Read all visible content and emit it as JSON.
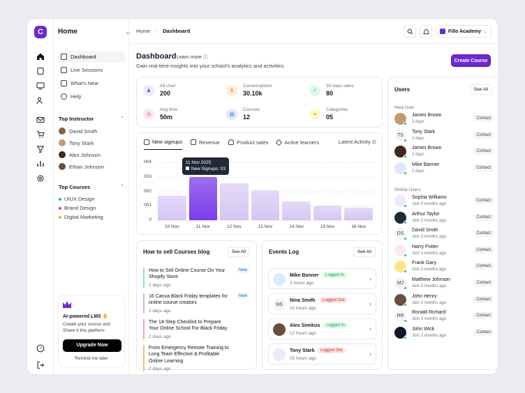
{
  "sidebar": {
    "title": "Home",
    "nav": [
      {
        "label": "Dashboard"
      },
      {
        "label": "Live Sessions"
      },
      {
        "label": "What's New"
      },
      {
        "label": "Help"
      }
    ],
    "instructors_title": "Top Instructor",
    "instructors": [
      {
        "name": "David Smith"
      },
      {
        "name": "Tony Stark"
      },
      {
        "name": "Alex Johnson"
      },
      {
        "name": "Ethan Johnson"
      }
    ],
    "courses_title": "Top Courses",
    "courses": [
      {
        "name": "UIUX Design",
        "color": "#22c55e"
      },
      {
        "name": "Brand Design",
        "color": "#ef4444"
      },
      {
        "name": "Digital Marketing",
        "color": "#eab308"
      }
    ],
    "promo": {
      "title": "AI-powered LMS ✋",
      "desc": "Create your course and Share it this platform",
      "button": "Upgrade Now",
      "later": "Remind me later"
    }
  },
  "topbar": {
    "crumb_home": "Home",
    "crumb_current": "Dashboard",
    "account": "Fillo Academy"
  },
  "main": {
    "title": "Dashboard",
    "learn": "Learn more ⓘ",
    "subtitle": "Gain real-time insights into your school's analytics and activities.",
    "cta": "Create Course"
  },
  "stats": [
    {
      "label": "All User",
      "value": "200",
      "color": "#ede9fe",
      "fg": "#7c3aed"
    },
    {
      "label": "Conversations",
      "value": "30.10k",
      "color": "#ffedd5",
      "fg": "#f97316"
    },
    {
      "label": "30 days sales",
      "value": "80",
      "color": "#dcfce7",
      "fg": "#16a34a"
    },
    {
      "label": "Avg time",
      "value": "50m",
      "color": "#fce7f3",
      "fg": "#db2777"
    },
    {
      "label": "Courses",
      "value": "12",
      "color": "#dbeafe",
      "fg": "#2563eb"
    },
    {
      "label": "Categories",
      "value": "05",
      "color": "#fef9c3",
      "fg": "#ca8a04"
    }
  ],
  "chart_tabs": [
    "New signups",
    "Revenue",
    "Product sales",
    "Active learners"
  ],
  "chart_latest": "Latest Activity ⊙",
  "chart_data": {
    "type": "bar",
    "categories": [
      "10 Nov",
      "11 Nov",
      "12 Nov",
      "13 Nov",
      "14 Nov",
      "15 Nov",
      "16 Nov"
    ],
    "values": [
      1.7,
      3.0,
      2.55,
      2.05,
      1.3,
      1.0,
      0.85
    ],
    "yticks": [
      "004",
      "003",
      "002",
      "001",
      "0"
    ],
    "ylim": [
      0,
      4
    ],
    "highlight_index": 1,
    "tooltip": {
      "date": "11 Nov 2025",
      "label": "New Signups: 03"
    }
  },
  "blog": {
    "title": "How to sell Courses blog",
    "see_all": "See All",
    "items": [
      {
        "title": "How to Sell Online Course On Your Shopify Store",
        "date": "2 days ago",
        "badge": "New",
        "color": "#86efac"
      },
      {
        "title": "16 Canva Black Friday templates for online course creators",
        "date": "2 days ago",
        "badge": "New",
        "color": "#c4b5fd"
      },
      {
        "title": "The 14-Step Checklist to Prepare Your Online School For Black Friday",
        "date": "2 days ago",
        "badge": "",
        "color": "#fca5a5"
      },
      {
        "title": "From Emergency Remote Training to Long Team Effective & Profitable Online Learning",
        "date": "2 days ago",
        "badge": "",
        "color": "#fdba74"
      }
    ]
  },
  "events": {
    "title": "Events Log",
    "see_all": "See All",
    "items": [
      {
        "name": "Mike Banner",
        "status": "Logged In",
        "time": "2 hours ago",
        "in": true
      },
      {
        "name": "Nina Smith",
        "status": "Logged Out",
        "time": "10 hours ago",
        "in": false,
        "initials": "NS"
      },
      {
        "name": "Alex Simitsis",
        "status": "Logged In",
        "time": "12 hours ago",
        "in": true
      },
      {
        "name": "Tony Stark",
        "status": "Logged Out",
        "time": "15 hours ago",
        "in": false
      }
    ]
  },
  "users": {
    "title": "Users",
    "see_all": "See All",
    "new_label": "New User",
    "online_label": "Online Users",
    "contact": "Contact",
    "new": [
      {
        "name": "James Brown",
        "time": "2 days",
        "initials": ""
      },
      {
        "name": "Tony Stark",
        "time": "2 days",
        "initials": "TS"
      },
      {
        "name": "James Brown",
        "time": "2 days",
        "initials": ""
      },
      {
        "name": "Mike Banner",
        "time": "2 days",
        "initials": ""
      }
    ],
    "online": [
      {
        "name": "Sophia Williams",
        "time": "Join 3 months ago",
        "initials": ""
      },
      {
        "name": "Arthur Taylor",
        "time": "Join 3 months ago",
        "initials": ""
      },
      {
        "name": "David Smith",
        "time": "Join 3 months ago",
        "initials": "DS"
      },
      {
        "name": "Harry Potter",
        "time": "Join 3 months ago",
        "initials": ""
      },
      {
        "name": "Frank Gary",
        "time": "Join 3 months ago",
        "initials": ""
      },
      {
        "name": "Matthew Johnson",
        "time": "Join 3 months ago",
        "initials": "MJ"
      },
      {
        "name": "John Henry",
        "time": "Join 3 months ago",
        "initials": ""
      },
      {
        "name": "Ronald Richard",
        "time": "Join 3 months ago",
        "initials": "RR"
      },
      {
        "name": "John Wick",
        "time": "Join 3 months ago",
        "initials": ""
      }
    ]
  }
}
